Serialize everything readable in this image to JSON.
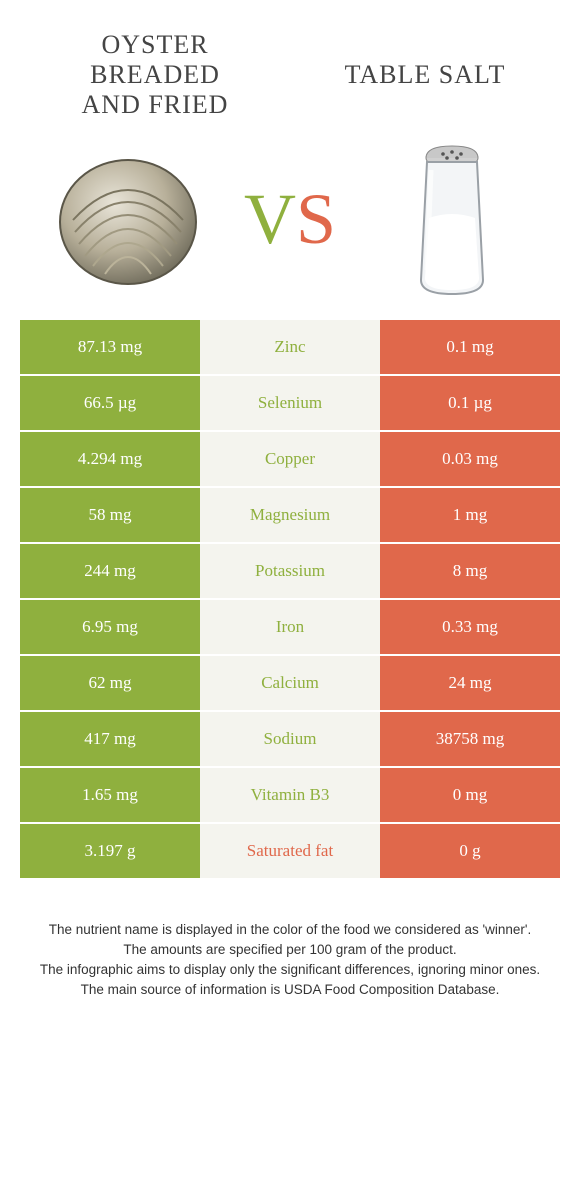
{
  "colors": {
    "left": "#8fb03e",
    "right": "#e0684b",
    "mid_bg": "#f4f4ee",
    "row_text": "#ffffff"
  },
  "header": {
    "left_title_l1": "Oyster",
    "left_title_l2": "breaded",
    "left_title_l3": "and fried",
    "right_title": "Table salt",
    "vs_v": "V",
    "vs_s": "S"
  },
  "rows": [
    {
      "left": "87.13 mg",
      "label": "Zinc",
      "right": "0.1 mg",
      "winner": "left"
    },
    {
      "left": "66.5 µg",
      "label": "Selenium",
      "right": "0.1 µg",
      "winner": "left"
    },
    {
      "left": "4.294 mg",
      "label": "Copper",
      "right": "0.03 mg",
      "winner": "left"
    },
    {
      "left": "58 mg",
      "label": "Magnesium",
      "right": "1 mg",
      "winner": "left"
    },
    {
      "left": "244 mg",
      "label": "Potassium",
      "right": "8 mg",
      "winner": "left"
    },
    {
      "left": "6.95 mg",
      "label": "Iron",
      "right": "0.33 mg",
      "winner": "left"
    },
    {
      "left": "62 mg",
      "label": "Calcium",
      "right": "24 mg",
      "winner": "left"
    },
    {
      "left": "417 mg",
      "label": "Sodium",
      "right": "38758 mg",
      "winner": "left"
    },
    {
      "left": "1.65 mg",
      "label": "Vitamin B3",
      "right": "0 mg",
      "winner": "left"
    },
    {
      "left": "3.197 g",
      "label": "Saturated fat",
      "right": "0 g",
      "winner": "right"
    }
  ],
  "footer": {
    "l1": "The nutrient name is displayed in the color of the food we considered as 'winner'.",
    "l2": "The amounts are specified per 100 gram of the product.",
    "l3": "The infographic aims to display only the significant differences, ignoring minor ones.",
    "l4": "The main source of information is USDA Food Composition Database."
  }
}
